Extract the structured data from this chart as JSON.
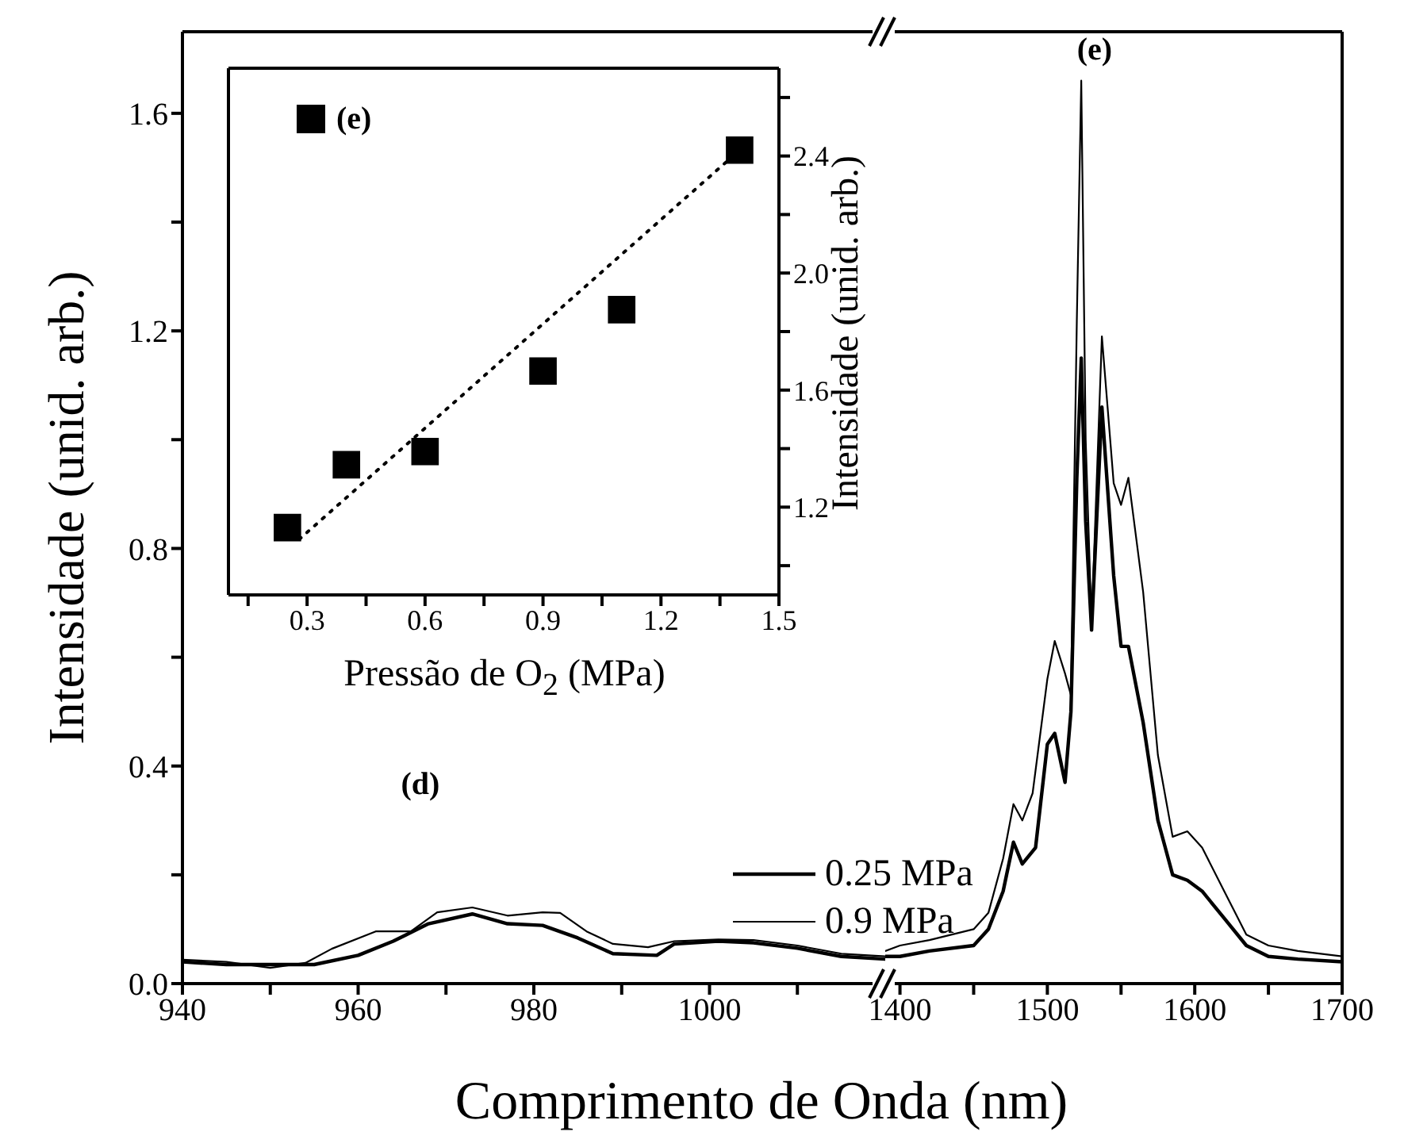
{
  "chart_data": [
    {
      "type": "line",
      "xlabel": "Comprimento de Onda (nm)",
      "ylabel": "Intensidade (unid. arb.)",
      "xlim": [
        940,
        1020
      ],
      "xticks": [
        940,
        {
          "value": 950,
          "label": null
        },
        960,
        {
          "value": 970,
          "label": null
        },
        980,
        {
          "value": 990,
          "label": null
        },
        1000,
        {
          "value": 1010,
          "label": null
        }
      ],
      "ylim": [
        0,
        1.75
      ],
      "yticks": [
        {
          "value": 0,
          "label": "0.0"
        },
        {
          "value": 0.2,
          "label": null
        },
        0.4,
        {
          "value": 0.6,
          "label": null
        },
        0.8,
        {
          "value": 1.0,
          "label": null
        },
        1.2,
        {
          "value": 1.4,
          "label": null
        },
        1.6
      ],
      "legend": "bottom right",
      "marker": "none",
      "line_style": "solid",
      "annotations": [
        "(d)"
      ],
      "series": [
        {
          "name": "0.25 MPa",
          "color": "#000000",
          "x": [
            940,
            945,
            950,
            955,
            960,
            964,
            968,
            973,
            977,
            981,
            985,
            989,
            994,
            996,
            1001,
            1005,
            1010,
            1015,
            1020
          ],
          "values": [
            0.04,
            0.035,
            0.035,
            0.035,
            0.052,
            0.078,
            0.11,
            0.128,
            0.11,
            0.107,
            0.084,
            0.055,
            0.052,
            0.073,
            0.078,
            0.075,
            0.065,
            0.05,
            0.045
          ]
        },
        {
          "name": "0.9 MPa",
          "color": "#000000",
          "x": [
            940,
            945,
            950,
            954,
            957,
            962,
            966,
            969,
            973,
            977,
            981,
            983,
            986,
            989,
            993,
            996,
            1001,
            1005,
            1010,
            1015,
            1020
          ],
          "values": [
            0.044,
            0.04,
            0.029,
            0.038,
            0.064,
            0.096,
            0.096,
            0.131,
            0.14,
            0.125,
            0.131,
            0.13,
            0.096,
            0.073,
            0.067,
            0.078,
            0.081,
            0.08,
            0.07,
            0.055,
            0.05
          ]
        }
      ]
    },
    {
      "type": "line",
      "xlim": [
        1390,
        1700
      ],
      "xticks": [
        1400,
        {
          "value": 1450,
          "label": null
        },
        1500,
        {
          "value": 1550,
          "label": null
        },
        1600,
        {
          "value": 1650,
          "label": null
        },
        1700
      ],
      "ylim": [
        0,
        1.75
      ],
      "tick_labels": "x",
      "marker": "none",
      "line_style": "solid",
      "annotations": [
        "(e)"
      ],
      "series": [
        {
          "color": "#000000",
          "x": [
            1390,
            1400,
            1420,
            1450,
            1460,
            1470,
            1477,
            1483,
            1492,
            1500,
            1505,
            1512,
            1516,
            1520,
            1523,
            1526,
            1530,
            1537,
            1545,
            1550,
            1555,
            1565,
            1575,
            1585,
            1595,
            1605,
            1620,
            1635,
            1650,
            1670,
            1700
          ],
          "values": [
            0.05,
            0.05,
            0.06,
            0.07,
            0.1,
            0.17,
            0.26,
            0.22,
            0.25,
            0.44,
            0.46,
            0.37,
            0.5,
            0.93,
            1.15,
            0.85,
            0.65,
            1.06,
            0.75,
            0.62,
            0.62,
            0.48,
            0.3,
            0.2,
            0.19,
            0.17,
            0.12,
            0.07,
            0.05,
            0.045,
            0.04
          ]
        },
        {
          "color": "#000000",
          "x": [
            1390,
            1400,
            1420,
            1450,
            1460,
            1470,
            1477,
            1483,
            1490,
            1500,
            1505,
            1512,
            1516,
            1520,
            1523,
            1526,
            1530,
            1537,
            1545,
            1550,
            1555,
            1565,
            1575,
            1585,
            1595,
            1605,
            1620,
            1635,
            1650,
            1670,
            1700
          ],
          "values": [
            0.06,
            0.07,
            0.08,
            0.1,
            0.13,
            0.23,
            0.33,
            0.3,
            0.35,
            0.56,
            0.63,
            0.57,
            0.53,
            1.22,
            1.66,
            1.0,
            0.66,
            1.19,
            0.92,
            0.88,
            0.93,
            0.72,
            0.42,
            0.27,
            0.28,
            0.25,
            0.17,
            0.09,
            0.07,
            0.06,
            0.05
          ]
        }
      ]
    },
    {
      "type": "scatter",
      "xlabel": "Pressão de O$_{2}$ (MPa)",
      "ylabel": "Intensidade (unid. arb.)",
      "xlim": [
        0.1,
        1.5
      ],
      "xticks": [
        {
          "value": 0.15,
          "label": null
        },
        0.3,
        {
          "value": 0.45,
          "label": null
        },
        0.6,
        {
          "value": 0.75,
          "label": null
        },
        0.9,
        {
          "value": 1.05,
          "label": null
        },
        1.2,
        {
          "value": 1.35,
          "label": null
        },
        1.5
      ],
      "ylim": [
        0.9,
        2.7
      ],
      "yticks": [
        {
          "value": 1.0,
          "label": null
        },
        1.2,
        {
          "value": 1.4,
          "label": null
        },
        1.6,
        {
          "value": 1.8,
          "label": null
        },
        {
          "value": 2.0,
          "label": "2.0"
        },
        {
          "value": 2.2,
          "label": null
        },
        2.4,
        {
          "value": 2.6,
          "label": null
        }
      ],
      "legend": "top left",
      "marker": "square",
      "series": [
        {
          "name": "(e)",
          "color": "#000000",
          "x": [
            0.25,
            0.4,
            0.6,
            0.9,
            1.1,
            1.4
          ],
          "values": [
            1.13,
            1.345,
            1.39,
            1.665,
            1.875,
            2.42
          ]
        },
        {
          "type": "line",
          "color": "#000000",
          "line_style": "dotted",
          "marker": "none",
          "x": [
            0.28,
            1.4
          ],
          "values": [
            1.09,
            2.42
          ]
        }
      ]
    }
  ]
}
